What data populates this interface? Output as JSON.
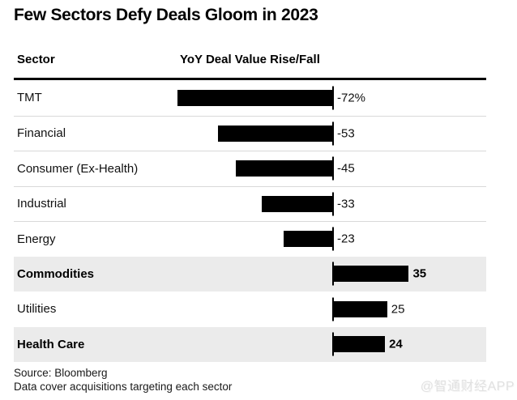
{
  "title": "Few Sectors Defy Deals Gloom in 2023",
  "columns": {
    "sector": "Sector",
    "value": "YoY Deal Value Rise/Fall"
  },
  "chart_data": {
    "type": "bar",
    "orientation": "horizontal",
    "title": "Few Sectors Defy Deals Gloom in 2023",
    "xlabel": "YoY Deal Value Rise/Fall",
    "unit": "%",
    "xlim": [
      -80,
      40
    ],
    "grid": false,
    "legend": false,
    "bar_color": "#000000",
    "categories": [
      "TMT",
      "Financial",
      "Consumer (Ex-Health)",
      "Industrial",
      "Energy",
      "Commodities",
      "Utilities",
      "Health Care"
    ],
    "values": [
      -72,
      -53,
      -45,
      -33,
      -23,
      35,
      25,
      24
    ],
    "value_labels": [
      "-72%",
      "-53",
      "-45",
      "-33",
      "-23",
      "35",
      "25",
      "24"
    ],
    "highlighted": [
      false,
      false,
      false,
      false,
      false,
      true,
      false,
      true
    ],
    "highlighted_categories": [
      "Commodities",
      "Health Care"
    ]
  },
  "footer": {
    "source": "Source: Bloomberg",
    "note": "Data cover acquisitions targeting each sector"
  },
  "watermark": "@智通财经APP",
  "colors": {
    "bar": "#000000",
    "highlight_row_bg": "#ebebeb",
    "divider": "#d9d9d9",
    "header_rule": "#000000",
    "watermark": "#e1e1e1"
  }
}
